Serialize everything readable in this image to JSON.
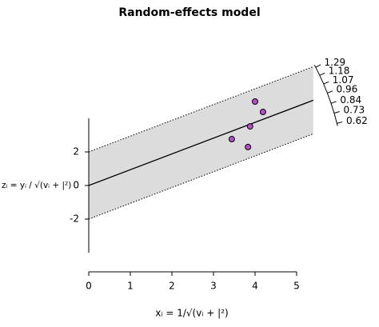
{
  "chart_data": {
    "type": "radial",
    "title": "Random-effects model",
    "xlabel": "xᵢ = 1/√(vᵢ + |²)",
    "ylabel": "zᵢ = yᵢ / √(vᵢ + |²)",
    "x": [
      4.0,
      4.19,
      3.88,
      3.44,
      3.83
    ],
    "values": [
      5.0,
      4.38,
      3.52,
      2.76,
      2.29
    ],
    "color": "#b44fc9",
    "fit_slope": 0.94,
    "band": 2,
    "xlim": [
      0,
      5.4
    ],
    "xticks": [
      0,
      1,
      2,
      3,
      4,
      5
    ],
    "ylim": [
      -4,
      4
    ],
    "yticks": [
      -2,
      0,
      2
    ],
    "arc_ticks": [
      1.29,
      1.18,
      1.07,
      0.96,
      0.84,
      0.73,
      0.62
    ]
  }
}
